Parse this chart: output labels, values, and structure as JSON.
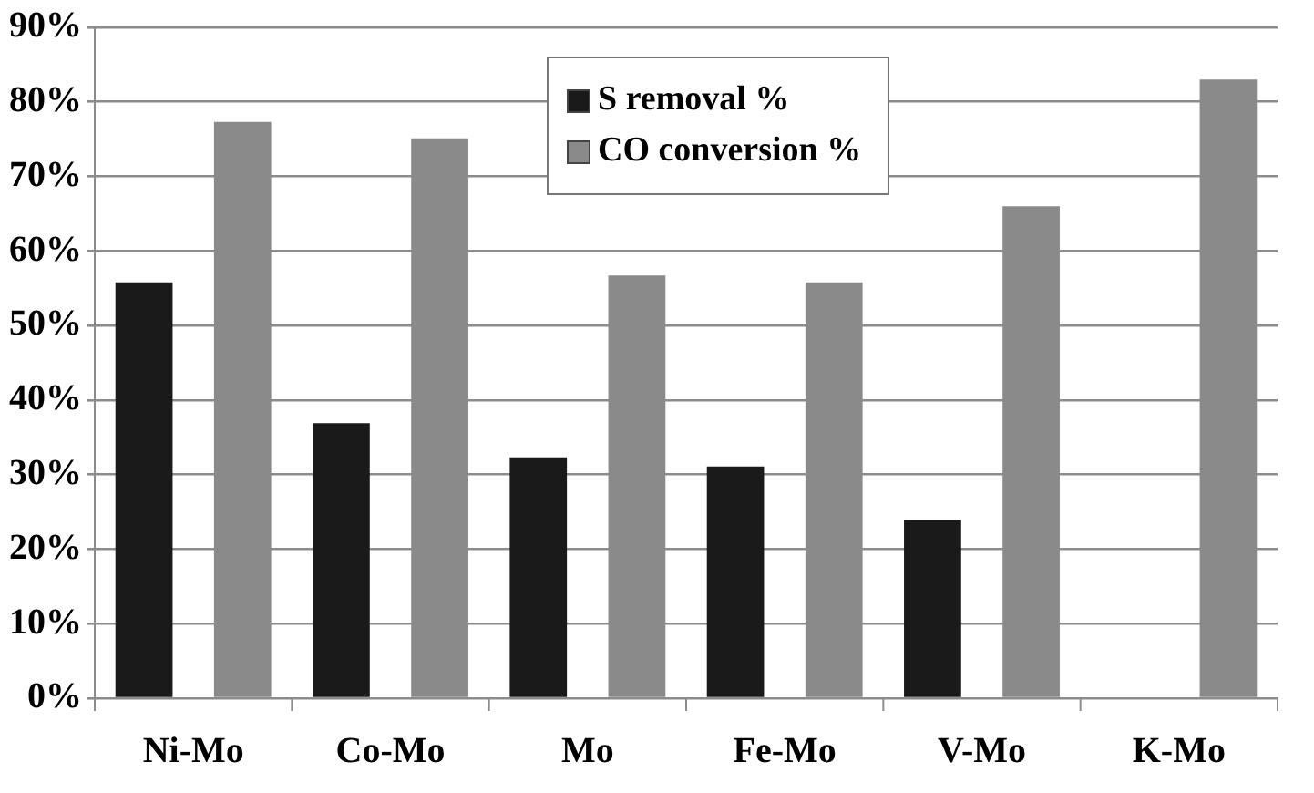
{
  "chart_data": {
    "type": "bar",
    "categories": [
      "Ni-Mo",
      "Co-Mo",
      "Mo",
      "Fe-Mo",
      "V-Mo",
      "K-Mo"
    ],
    "series": [
      {
        "name": "S removal %",
        "color": "#1a1a1a",
        "values": [
          55.8,
          36.9,
          32.3,
          31.1,
          23.9,
          0
        ]
      },
      {
        "name": "CO conversion %",
        "color": "#8a8a8a",
        "values": [
          77.3,
          75.1,
          56.7,
          55.8,
          66.0,
          83.0
        ]
      }
    ],
    "ylim": [
      0,
      90
    ],
    "yticks": [
      {
        "value": 0,
        "label": "0%"
      },
      {
        "value": 10,
        "label": "10%"
      },
      {
        "value": 20,
        "label": "20%"
      },
      {
        "value": 30,
        "label": "30%"
      },
      {
        "value": 40,
        "label": "40%"
      },
      {
        "value": 50,
        "label": "50%"
      },
      {
        "value": 60,
        "label": "60%"
      },
      {
        "value": 70,
        "label": "70%"
      },
      {
        "value": 80,
        "label": "80%"
      },
      {
        "value": 90,
        "label": "90%"
      }
    ],
    "grid": "y",
    "legend": "top"
  }
}
